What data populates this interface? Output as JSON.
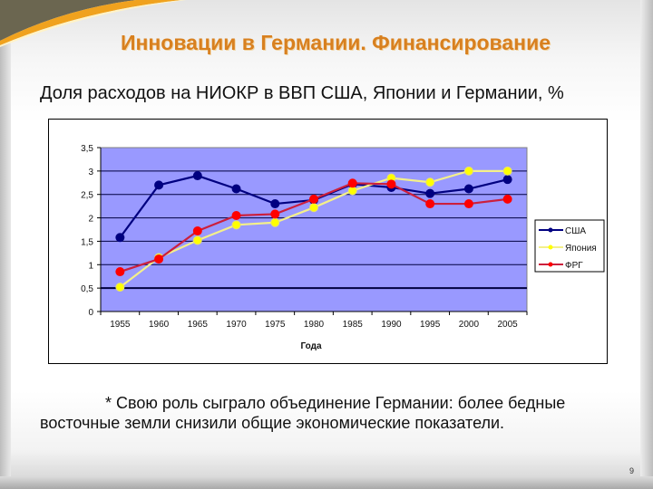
{
  "slide": {
    "title": "Инновации в Германии. Финансирование",
    "subtitle": "Доля расходов на НИОКР в ВВП США, Японии и Германии, %",
    "footnote": "* Свою роль сыграло объединение Германии: более бедные восточные земли снизили общие экономические показатели.",
    "page_number": "9",
    "colors": {
      "title": "#d8801f",
      "accent_swoosh": "#f0a21e",
      "plot_background": "#9999ff"
    }
  },
  "chart_data": {
    "type": "line",
    "title": "Доля расходов на НИОКР в ВВП США, Японии и Германии, %",
    "xlabel": "Года",
    "ylabel": "",
    "categories": [
      "1955",
      "1960",
      "1965",
      "1970",
      "1975",
      "1980",
      "1985",
      "1990",
      "1995",
      "2000",
      "2005"
    ],
    "y_ticks": [
      "0",
      "0,5",
      "1",
      "1,5",
      "2",
      "2,5",
      "3",
      "3,5"
    ],
    "ylim": [
      0,
      3.5
    ],
    "grid": true,
    "legend_position": "right",
    "series": [
      {
        "name": "США",
        "color": "#000080",
        "values": [
          1.58,
          2.7,
          2.9,
          2.62,
          2.3,
          2.38,
          2.72,
          2.65,
          2.52,
          2.62,
          2.82
        ]
      },
      {
        "name": "Япония",
        "color": "#ffff00",
        "values": [
          0.52,
          1.15,
          1.52,
          1.85,
          1.9,
          2.22,
          2.58,
          2.85,
          2.76,
          3.0,
          3.0
        ]
      },
      {
        "name": "ФРГ",
        "color": "#ff0000",
        "values": [
          0.85,
          1.12,
          1.72,
          2.05,
          2.08,
          2.4,
          2.74,
          2.72,
          2.3,
          2.3,
          2.4
        ]
      }
    ]
  }
}
